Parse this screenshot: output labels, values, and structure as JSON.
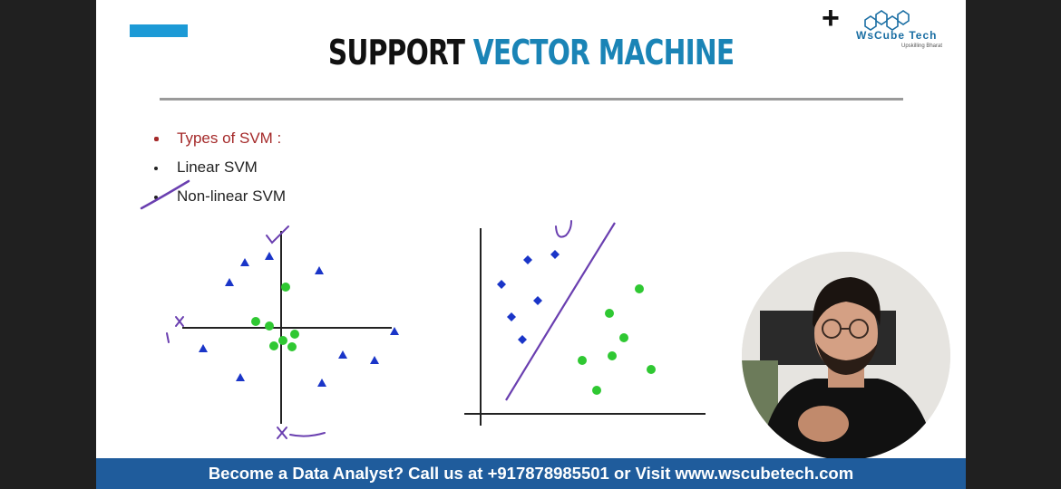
{
  "slide": {
    "title_part1": "SUPPORT",
    "title_part2": "VECTOR MACHINE",
    "accent_color": "#1c9ad6",
    "title_blue": "#1a84b6"
  },
  "logo": {
    "plus": "+",
    "name": "WsCube Tech",
    "tagline": "Upskilling Bharat",
    "icon": "hexagon-cluster-icon"
  },
  "bullets": [
    {
      "text": "Types of SVM :",
      "color": "#a52a2a"
    },
    {
      "text": "Linear SVM"
    },
    {
      "text": "Non-linear SVM"
    }
  ],
  "annotations": {
    "y_axis_mark": "y",
    "x_axis_mark": "x",
    "x1_subscript": "1",
    "x2_subscript": "2"
  },
  "banner": {
    "text": "Become a Data Analyst? Call us at +917878985501 or Visit www.wscubetech.com",
    "color": "#1f5c9c"
  },
  "webcam": {
    "content": "presenter-video-feed"
  }
}
